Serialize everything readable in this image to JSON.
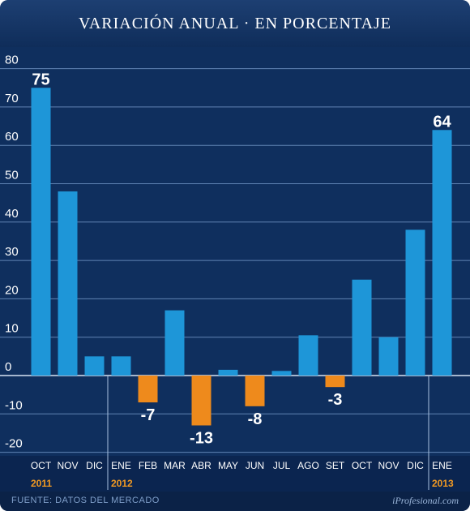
{
  "header": {
    "title": "VARIACIÓN ANUAL · EN PORCENTAJE"
  },
  "footer": {
    "source": "FUENTE:  DATOS DEL MERCADO",
    "brand": "iProfesional.com"
  },
  "colors": {
    "background": "#0d2a55",
    "positive_bar": "#1e96d8",
    "negative_bar": "#ee8a1c",
    "gridline": "#6f93c3",
    "year_label": "#f39a22",
    "text": "#ffffff"
  },
  "chart_data": {
    "type": "bar",
    "title": "VARIACIÓN ANUAL · EN PORCENTAJE",
    "categories": [
      "OCT",
      "NOV",
      "DIC",
      "ENE",
      "FEB",
      "MAR",
      "ABR",
      "MAY",
      "JUN",
      "JUL",
      "AGO",
      "SET",
      "OCT",
      "NOV",
      "DIC",
      "ENE"
    ],
    "values": [
      75,
      48,
      5,
      5,
      -7,
      17,
      -13,
      1.5,
      -8,
      1.2,
      10.5,
      -3,
      25,
      10,
      38,
      64
    ],
    "data_labels": [
      {
        "index": 0,
        "text": "75"
      },
      {
        "index": 4,
        "text": "-7"
      },
      {
        "index": 6,
        "text": "-13"
      },
      {
        "index": 8,
        "text": "-8"
      },
      {
        "index": 11,
        "text": "-3"
      },
      {
        "index": 15,
        "text": "64"
      }
    ],
    "year_groups": [
      {
        "label": "2011",
        "start": 0,
        "end": 2
      },
      {
        "label": "2012",
        "start": 3,
        "end": 14
      },
      {
        "label": "2013",
        "start": 15,
        "end": 15
      }
    ],
    "y_ticks": [
      80,
      70,
      60,
      50,
      40,
      30,
      20,
      10,
      0,
      -10,
      -20
    ],
    "ylim": [
      -20,
      80
    ],
    "grid": true,
    "legend": "none"
  }
}
